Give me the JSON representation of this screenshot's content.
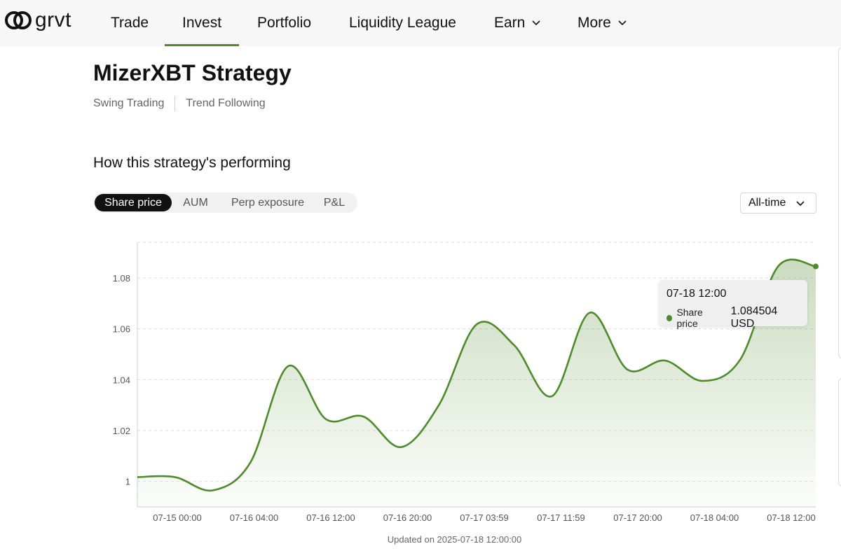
{
  "brand": {
    "name": "grvt"
  },
  "nav": {
    "items": [
      {
        "label": "Trade"
      },
      {
        "label": "Invest"
      },
      {
        "label": "Portfolio"
      },
      {
        "label": "Liquidity League"
      },
      {
        "label": "Earn"
      },
      {
        "label": "More"
      }
    ],
    "active": "Invest"
  },
  "strategy": {
    "title": "MizerXBT Strategy",
    "tags": [
      "Swing Trading",
      "Trend Following"
    ]
  },
  "performance": {
    "heading": "How this strategy's performing",
    "tabs": [
      "Share price",
      "AUM",
      "Perp exposure",
      "P&L"
    ],
    "active_tab": "Share price",
    "range": "All-time"
  },
  "tooltip": {
    "title": "07-18 12:00",
    "series": "Share price",
    "value": "1.084504 USD"
  },
  "updated_text": "Updated on 2025-07-18 12:00:00",
  "colors": {
    "accent": "#4f8a2b",
    "active_tab_bg": "#111111"
  },
  "chart_data": {
    "type": "area",
    "xlabel": "",
    "ylabel": "",
    "ylim": [
      0.99,
      1.094
    ],
    "y_ticks": [
      1,
      1.02,
      1.04,
      1.06,
      1.08
    ],
    "y_tick_labels": [
      "1",
      "1.02",
      "1.04",
      "1.06",
      "1.08"
    ],
    "x_tick_labels": [
      "07-15 00:00",
      "07-16 04:00",
      "07-16 12:00",
      "07-16 20:00",
      "07-17 03:59",
      "07-17 11:59",
      "07-17 20:00",
      "07-18 04:00",
      "07-18 12:00"
    ],
    "grid": true,
    "series": [
      {
        "name": "Share price",
        "x": [
          0,
          1,
          2,
          3,
          4,
          5,
          6,
          7,
          8,
          9,
          10,
          11,
          12,
          13,
          14,
          15,
          16,
          17,
          18
        ],
        "values": [
          1.0017,
          1.0017,
          0.9965,
          1.0075,
          1.0453,
          1.0245,
          1.0255,
          1.0135,
          1.03,
          1.0617,
          1.0535,
          1.0335,
          1.0663,
          1.044,
          1.0475,
          1.0395,
          1.048,
          1.0845,
          1.0845
        ]
      }
    ]
  }
}
